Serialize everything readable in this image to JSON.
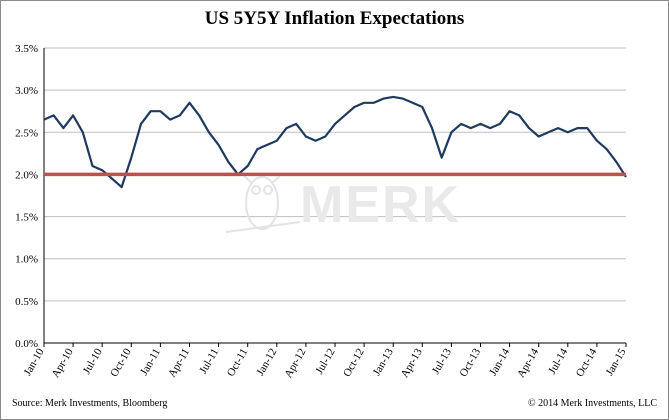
{
  "footer": {
    "source": "Source: Merk Investments, Bloomberg",
    "copyright": "© 2014 Merk Investments, LLC"
  },
  "watermark": {
    "text": "MERK"
  },
  "colors": {
    "series": "#1f3a5f",
    "reference": "#c0504d",
    "grid": "#bfbfbf",
    "axis": "#000000"
  },
  "chart_data": {
    "type": "line",
    "title": "US 5Y5Y Inflation Expectations",
    "xlabel": "",
    "ylabel": "",
    "ylim": [
      0,
      3.5
    ],
    "y_ticks": [
      0,
      0.5,
      1.0,
      1.5,
      2.0,
      2.5,
      3.0,
      3.5
    ],
    "y_tick_labels": [
      "0.0%",
      "0.5%",
      "1.0%",
      "1.5%",
      "2.0%",
      "2.5%",
      "3.0%",
      "3.5%"
    ],
    "x_tick_labels": [
      "Jan-10",
      "Apr-10",
      "Jul-10",
      "Oct-10",
      "Jan-11",
      "Apr-11",
      "Jul-11",
      "Oct-11",
      "Jan-12",
      "Apr-12",
      "Jul-12",
      "Oct-12",
      "Jan-13",
      "Apr-13",
      "Jul-13",
      "Oct-13",
      "Jan-14",
      "Apr-14",
      "Jul-14",
      "Oct-14",
      "Jan-15"
    ],
    "grid": true,
    "legend": "none",
    "reference_line": {
      "y": 2.0
    },
    "series": [
      {
        "x": [
          "2010-01",
          "2010-02",
          "2010-03",
          "2010-04",
          "2010-05",
          "2010-06",
          "2010-07",
          "2010-08",
          "2010-09",
          "2010-10",
          "2010-11",
          "2010-12",
          "2011-01",
          "2011-02",
          "2011-03",
          "2011-04",
          "2011-05",
          "2011-06",
          "2011-07",
          "2011-08",
          "2011-09",
          "2011-10",
          "2011-11",
          "2011-12",
          "2012-01",
          "2012-02",
          "2012-03",
          "2012-04",
          "2012-05",
          "2012-06",
          "2012-07",
          "2012-08",
          "2012-09",
          "2012-10",
          "2012-11",
          "2012-12",
          "2013-01",
          "2013-02",
          "2013-03",
          "2013-04",
          "2013-05",
          "2013-06",
          "2013-07",
          "2013-08",
          "2013-09",
          "2013-10",
          "2013-11",
          "2013-12",
          "2014-01",
          "2014-02",
          "2014-03",
          "2014-04",
          "2014-05",
          "2014-06",
          "2014-07",
          "2014-08",
          "2014-09",
          "2014-10",
          "2014-11",
          "2014-12",
          "2015-01"
        ],
        "values": [
          2.65,
          2.7,
          2.55,
          2.7,
          2.5,
          2.1,
          2.05,
          1.95,
          1.85,
          2.2,
          2.6,
          2.75,
          2.75,
          2.65,
          2.7,
          2.85,
          2.7,
          2.5,
          2.35,
          2.15,
          2.0,
          2.1,
          2.3,
          2.35,
          2.4,
          2.55,
          2.6,
          2.45,
          2.4,
          2.45,
          2.6,
          2.7,
          2.8,
          2.85,
          2.85,
          2.9,
          2.92,
          2.9,
          2.85,
          2.8,
          2.55,
          2.2,
          2.5,
          2.6,
          2.55,
          2.6,
          2.55,
          2.6,
          2.75,
          2.7,
          2.55,
          2.45,
          2.5,
          2.55,
          2.5,
          2.55,
          2.55,
          2.4,
          2.3,
          2.15,
          1.97
        ]
      }
    ]
  }
}
